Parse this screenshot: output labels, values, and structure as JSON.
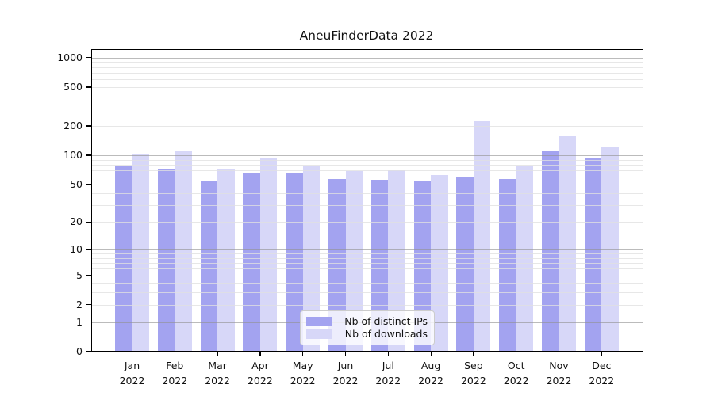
{
  "title": "AneuFinderData 2022",
  "legend": {
    "entries": [
      {
        "label": "Nb of distinct IPs"
      },
      {
        "label": "Nb of downloads"
      }
    ]
  },
  "chart_data": {
    "type": "bar",
    "title": "AneuFinderData 2022",
    "months": [
      "Jan",
      "Feb",
      "Mar",
      "Apr",
      "May",
      "Jun",
      "Jul",
      "Aug",
      "Sep",
      "Oct",
      "Nov",
      "Dec"
    ],
    "year": "2022",
    "categories": [
      "Jan 2022",
      "Feb 2022",
      "Mar 2022",
      "Apr 2022",
      "May 2022",
      "Jun 2022",
      "Jul 2022",
      "Aug 2022",
      "Sep 2022",
      "Oct 2022",
      "Nov 2022",
      "Dec 2022"
    ],
    "series": [
      {
        "name": "Nb of distinct IPs",
        "color": "#a3a3f0",
        "values": [
          76,
          71,
          54,
          65,
          66,
          57,
          56,
          54,
          60,
          57,
          109,
          92
        ]
      },
      {
        "name": "Nb of downloads",
        "color": "#d7d7f8",
        "values": [
          103,
          110,
          72,
          93,
          76,
          68,
          70,
          62,
          225,
          78,
          156,
          122
        ]
      }
    ],
    "yscale": "log1p",
    "ylim": [
      0,
      1500
    ],
    "yticks": [
      1000,
      500,
      200,
      100,
      50,
      20,
      10,
      5,
      2,
      1,
      0
    ],
    "ytick_labels": [
      "1000",
      "500",
      "200",
      "100",
      "50",
      "20",
      "10",
      "5",
      "2",
      "1",
      "0"
    ],
    "major_gridlines": [
      1000,
      100,
      10,
      1
    ],
    "light_gridlines": [
      500,
      200,
      50,
      20,
      5,
      2
    ],
    "minor_gridlines": [
      900,
      800,
      700,
      600,
      400,
      300,
      90,
      80,
      70,
      60,
      40,
      30,
      9,
      8,
      7,
      6,
      4,
      3
    ],
    "grid": true,
    "legend_position": "lower center"
  }
}
